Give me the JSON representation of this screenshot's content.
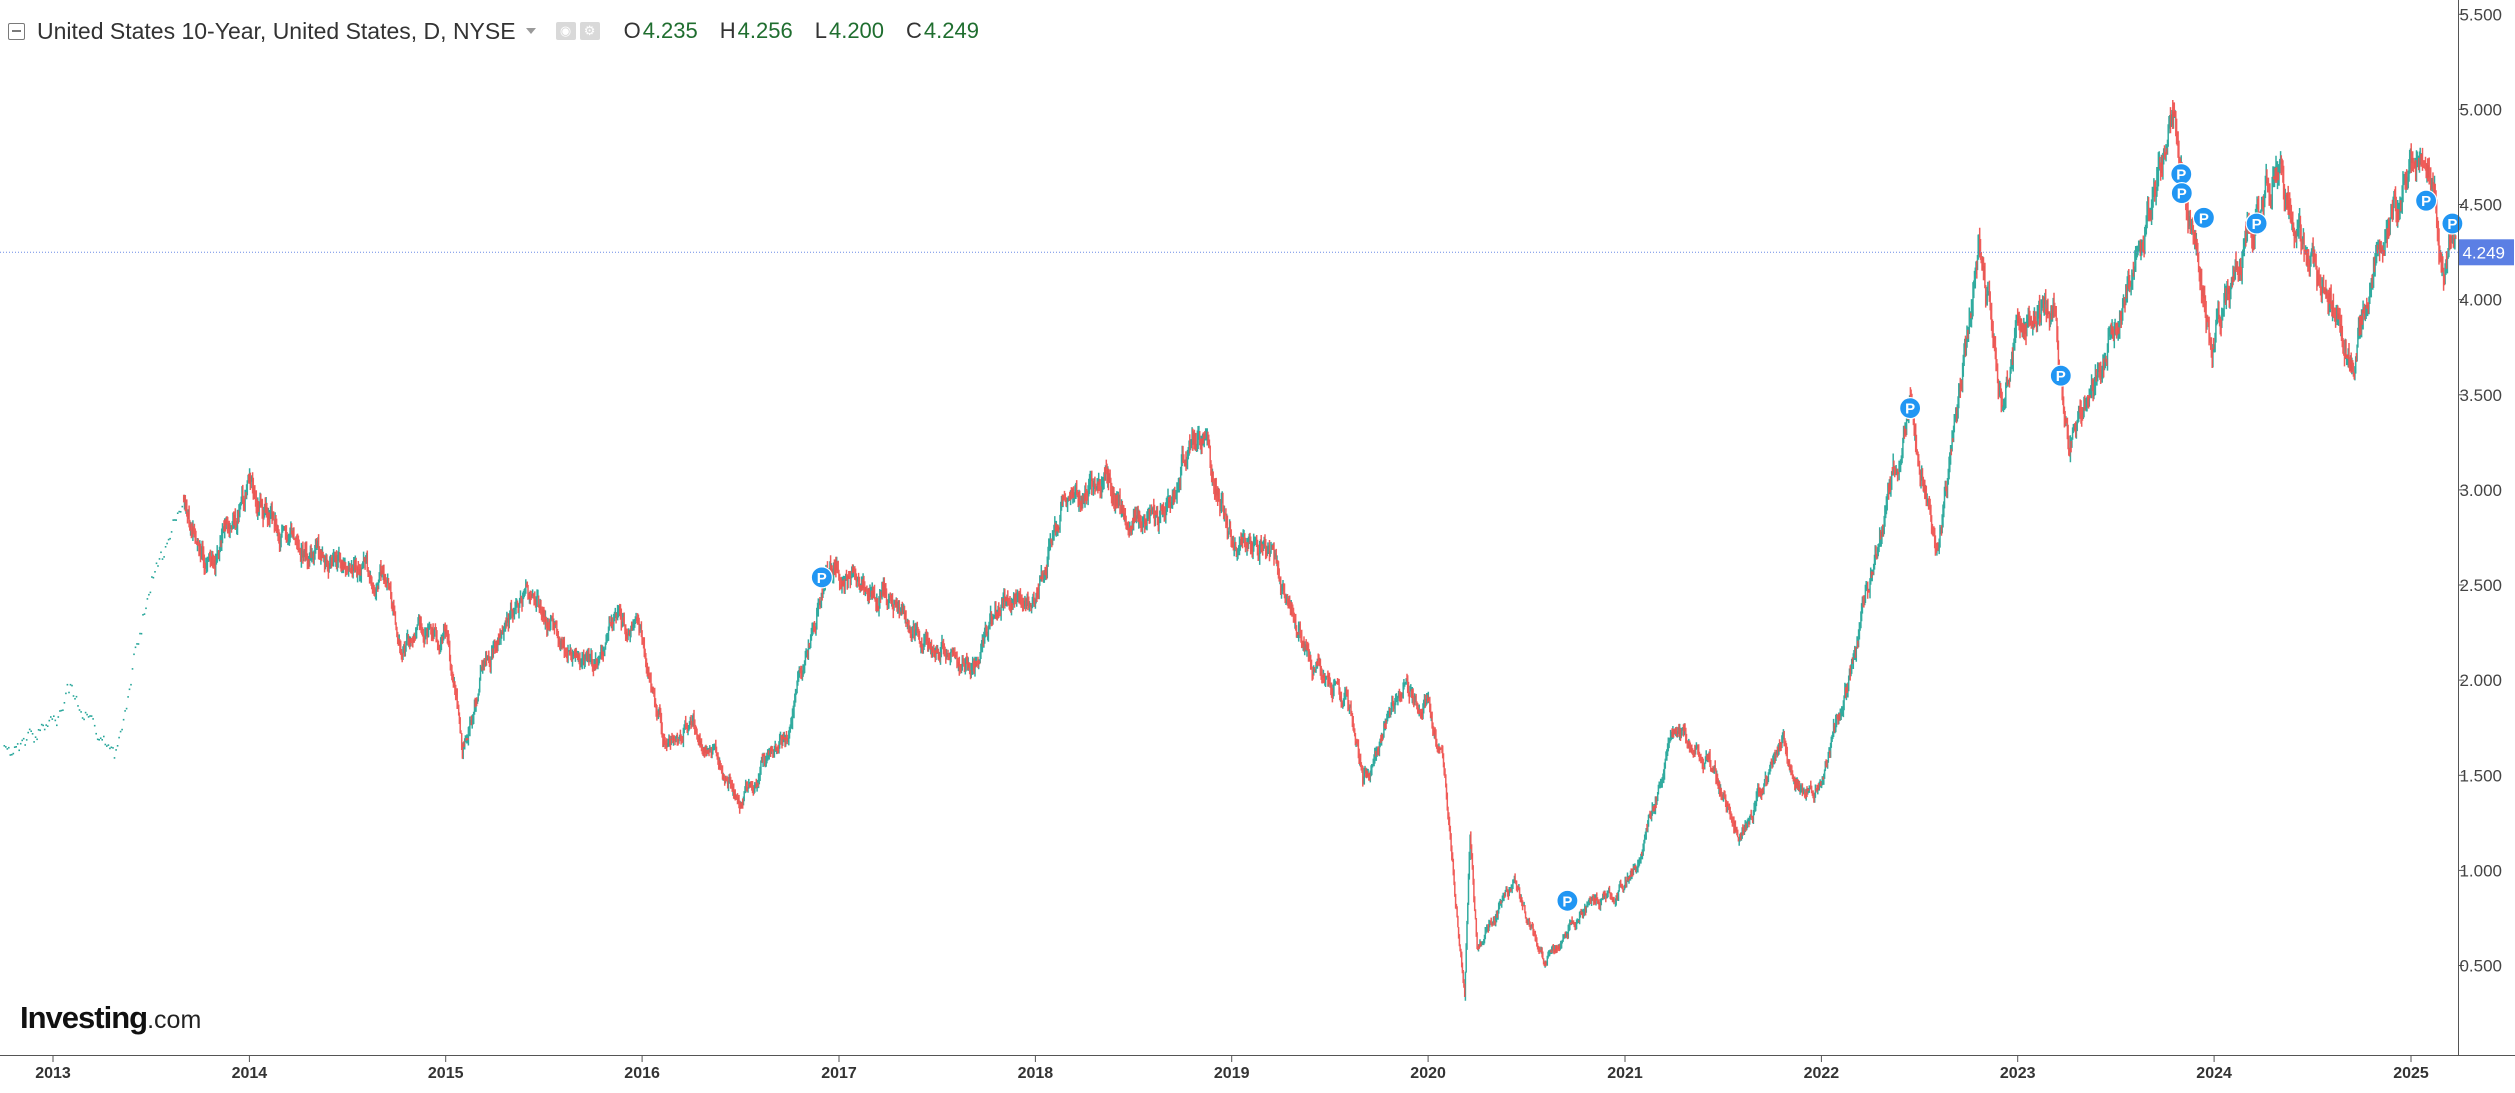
{
  "legend": {
    "title": "United States 10-Year, United States, D, NYSE",
    "ohlc": [
      {
        "key": "O",
        "value": "4.235"
      },
      {
        "key": "H",
        "value": "4.256"
      },
      {
        "key": "L",
        "value": "4.200"
      },
      {
        "key": "C",
        "value": "4.249"
      }
    ]
  },
  "brand": {
    "name": "Investing",
    "suffix": ".com"
  },
  "colors": {
    "up": "#26a69a",
    "down": "#ef5350",
    "marker": "#2196f3",
    "price_line": "#5b7fe4"
  },
  "chart_data": {
    "type": "line",
    "title": "United States 10-Year, United States, D, NYSE",
    "xlabel": "",
    "ylabel": "",
    "x_tick_labels": [
      "2013",
      "2014",
      "2015",
      "2016",
      "2017",
      "2018",
      "2019",
      "2020",
      "2021",
      "2022",
      "2023",
      "2024",
      "2025"
    ],
    "y_tick_labels": [
      "0.500",
      "1.000",
      "1.500",
      "2.000",
      "2.500",
      "3.000",
      "3.500",
      "4.000",
      "4.500",
      "5.000",
      "5.500"
    ],
    "ylim": [
      0.0,
      5.55
    ],
    "xlim": [
      "2012-09-20",
      "2025-04-01"
    ],
    "grid": false,
    "last_price_label": "4.249",
    "last_price": 4.249,
    "series": [
      {
        "x": [
          "2012-10-01",
          "2012-12-01",
          "2013-02-01",
          "2013-04-01",
          "2013-05-01",
          "2013-07-01",
          "2013-09-01",
          "2013-10-15",
          "2013-12-31",
          "2014-03-01",
          "2014-06-01",
          "2014-09-01",
          "2014-10-15",
          "2014-12-31",
          "2015-02-01",
          "2015-03-15",
          "2015-06-10",
          "2015-08-01",
          "2015-10-01",
          "2015-11-15",
          "2016-01-01",
          "2016-02-10",
          "2016-04-01",
          "2016-07-06",
          "2016-08-20",
          "2016-10-01",
          "2016-11-15",
          "2016-12-15",
          "2017-03-15",
          "2017-06-15",
          "2017-09-08",
          "2017-11-01",
          "2018-01-01",
          "2018-02-20",
          "2018-05-17",
          "2018-06-20",
          "2018-08-30",
          "2018-10-01",
          "2018-11-08",
          "2018-12-31",
          "2019-03-01",
          "2019-06-01",
          "2019-08-01",
          "2019-09-03",
          "2019-10-15",
          "2019-11-10",
          "2019-12-31",
          "2020-01-31",
          "2020-03-09",
          "2020-03-19",
          "2020-04-01",
          "2020-06-08",
          "2020-08-04",
          "2020-10-10",
          "2020-12-31",
          "2021-02-01",
          "2021-03-31",
          "2021-06-01",
          "2021-08-04",
          "2021-10-21",
          "2021-12-01",
          "2021-12-31",
          "2022-02-01",
          "2022-03-31",
          "2022-06-14",
          "2022-08-01",
          "2022-09-01",
          "2022-10-21",
          "2022-12-07",
          "2023-01-01",
          "2023-03-08",
          "2023-04-06",
          "2023-05-31",
          "2023-07-01",
          "2023-08-21",
          "2023-10-19",
          "2023-11-15",
          "2023-12-27",
          "2024-02-01",
          "2024-04-25",
          "2024-06-01",
          "2024-07-31",
          "2024-09-16",
          "2024-10-15",
          "2024-11-15",
          "2025-01-14",
          "2025-02-15",
          "2025-03-04",
          "2025-03-25"
        ],
        "values": [
          1.65,
          1.7,
          1.95,
          1.7,
          1.63,
          2.5,
          2.95,
          2.6,
          3.0,
          2.75,
          2.6,
          2.55,
          2.2,
          2.25,
          1.65,
          2.1,
          2.45,
          2.2,
          2.05,
          2.35,
          2.2,
          1.7,
          1.8,
          1.36,
          1.6,
          1.75,
          2.3,
          2.6,
          2.45,
          2.2,
          2.05,
          2.4,
          2.45,
          2.9,
          3.1,
          2.85,
          2.85,
          3.15,
          3.24,
          2.7,
          2.7,
          2.1,
          1.9,
          1.47,
          1.8,
          1.94,
          1.92,
          1.5,
          0.35,
          1.18,
          0.6,
          0.95,
          0.51,
          0.78,
          0.92,
          1.1,
          1.74,
          1.6,
          1.16,
          1.68,
          1.35,
          1.5,
          1.78,
          2.48,
          3.48,
          2.6,
          3.2,
          4.25,
          3.4,
          3.85,
          3.98,
          3.28,
          3.64,
          3.85,
          4.3,
          5.0,
          4.45,
          3.79,
          4.05,
          4.7,
          4.35,
          4.03,
          3.62,
          4.1,
          4.4,
          4.79,
          4.5,
          4.12,
          4.35
        ]
      }
    ],
    "event_markers": [
      {
        "label": "P",
        "x": "2016-11-30",
        "y": 2.54
      },
      {
        "label": "P",
        "x": "2020-09-16",
        "y": 0.84
      },
      {
        "label": "P",
        "x": "2022-06-15",
        "y": 3.43
      },
      {
        "label": "P",
        "x": "2023-03-22",
        "y": 3.6
      },
      {
        "label": "P",
        "x": "2023-11-01",
        "y": 4.66
      },
      {
        "label": "P",
        "x": "2023-11-02",
        "y": 4.56
      },
      {
        "label": "P",
        "x": "2023-12-13",
        "y": 4.43
      },
      {
        "label": "P",
        "x": "2024-03-20",
        "y": 4.4
      },
      {
        "label": "P",
        "x": "2025-01-29",
        "y": 4.52
      },
      {
        "label": "P",
        "x": "2025-03-19",
        "y": 4.4
      }
    ]
  }
}
